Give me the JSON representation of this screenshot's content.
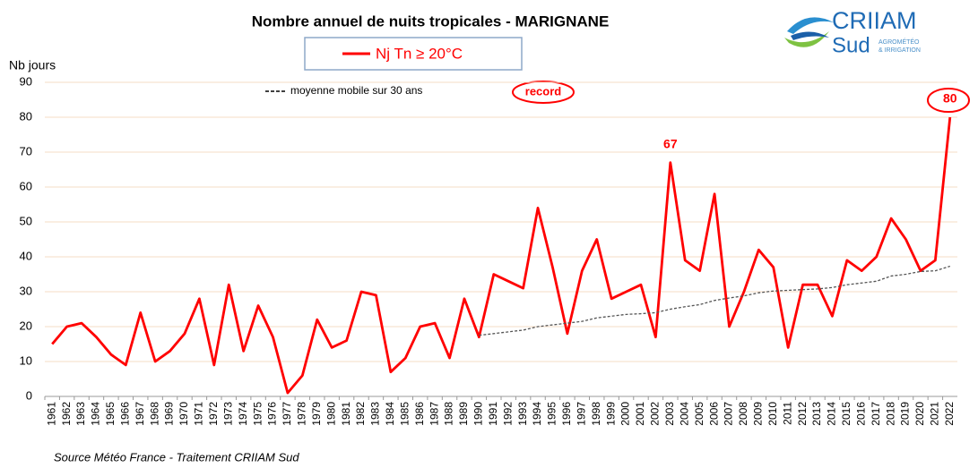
{
  "chart_data": {
    "type": "line",
    "title": "Nombre annuel de nuits tropicales - MARIGNANE",
    "y_label": "Nb jours",
    "annotation": "record",
    "source": "Source Météo France - Traitement CRIIAM Sud",
    "logo": {
      "name": "CRIIAM",
      "sub": "Sud",
      "tag1": "AGROMÉTÉO",
      "tag2": "& IRRIGATION"
    },
    "categories": [
      "1961",
      "1962",
      "1963",
      "1964",
      "1965",
      "1966",
      "1967",
      "1968",
      "1969",
      "1970",
      "1971",
      "1972",
      "1973",
      "1974",
      "1975",
      "1976",
      "1977",
      "1978",
      "1979",
      "1980",
      "1981",
      "1982",
      "1983",
      "1984",
      "1985",
      "1986",
      "1987",
      "1988",
      "1989",
      "1990",
      "1991",
      "1992",
      "1993",
      "1994",
      "1995",
      "1996",
      "1997",
      "1998",
      "1999",
      "2000",
      "2001",
      "2002",
      "2003",
      "2004",
      "2005",
      "2006",
      "2007",
      "2008",
      "2009",
      "2010",
      "2011",
      "2012",
      "2013",
      "2014",
      "2015",
      "2016",
      "2017",
      "2018",
      "2019",
      "2020",
      "2021",
      "2022"
    ],
    "series": [
      {
        "name": "Nj Tn ≥ 20°C",
        "color": "#ff0000",
        "dashed": false,
        "values": [
          15,
          20,
          21,
          17,
          12,
          9,
          24,
          10,
          13,
          18,
          28,
          9,
          32,
          13,
          26,
          17,
          1,
          6,
          22,
          14,
          16,
          30,
          29,
          7,
          11,
          20,
          21,
          11,
          28,
          17,
          35,
          33,
          31,
          54,
          37,
          18,
          36,
          45,
          28,
          30,
          32,
          17,
          67,
          39,
          36,
          58,
          20,
          30,
          42,
          37,
          14,
          32,
          32,
          23,
          39,
          36,
          40,
          51,
          45,
          36,
          39,
          80
        ]
      },
      {
        "name": "moyenne mobile sur 30 ans",
        "color": "#555555",
        "dashed": true,
        "values": [
          null,
          null,
          null,
          null,
          null,
          null,
          null,
          null,
          null,
          null,
          null,
          null,
          null,
          null,
          null,
          null,
          null,
          null,
          null,
          null,
          null,
          null,
          null,
          null,
          null,
          null,
          null,
          null,
          null,
          17.5,
          18,
          18.5,
          19,
          20,
          20.5,
          21,
          21.5,
          22.5,
          23,
          23.5,
          23.7,
          24,
          25,
          25.7,
          26.3,
          27.5,
          28.2,
          28.8,
          29.7,
          30.2,
          30.4,
          30.6,
          30.8,
          31.2,
          32,
          32.5,
          33,
          34.5,
          35,
          35.8,
          36,
          37.3
        ]
      }
    ],
    "ylim": [
      0,
      90
    ],
    "yticks": [
      0,
      10,
      20,
      30,
      40,
      50,
      60,
      70,
      80,
      90
    ],
    "grid": true
  }
}
